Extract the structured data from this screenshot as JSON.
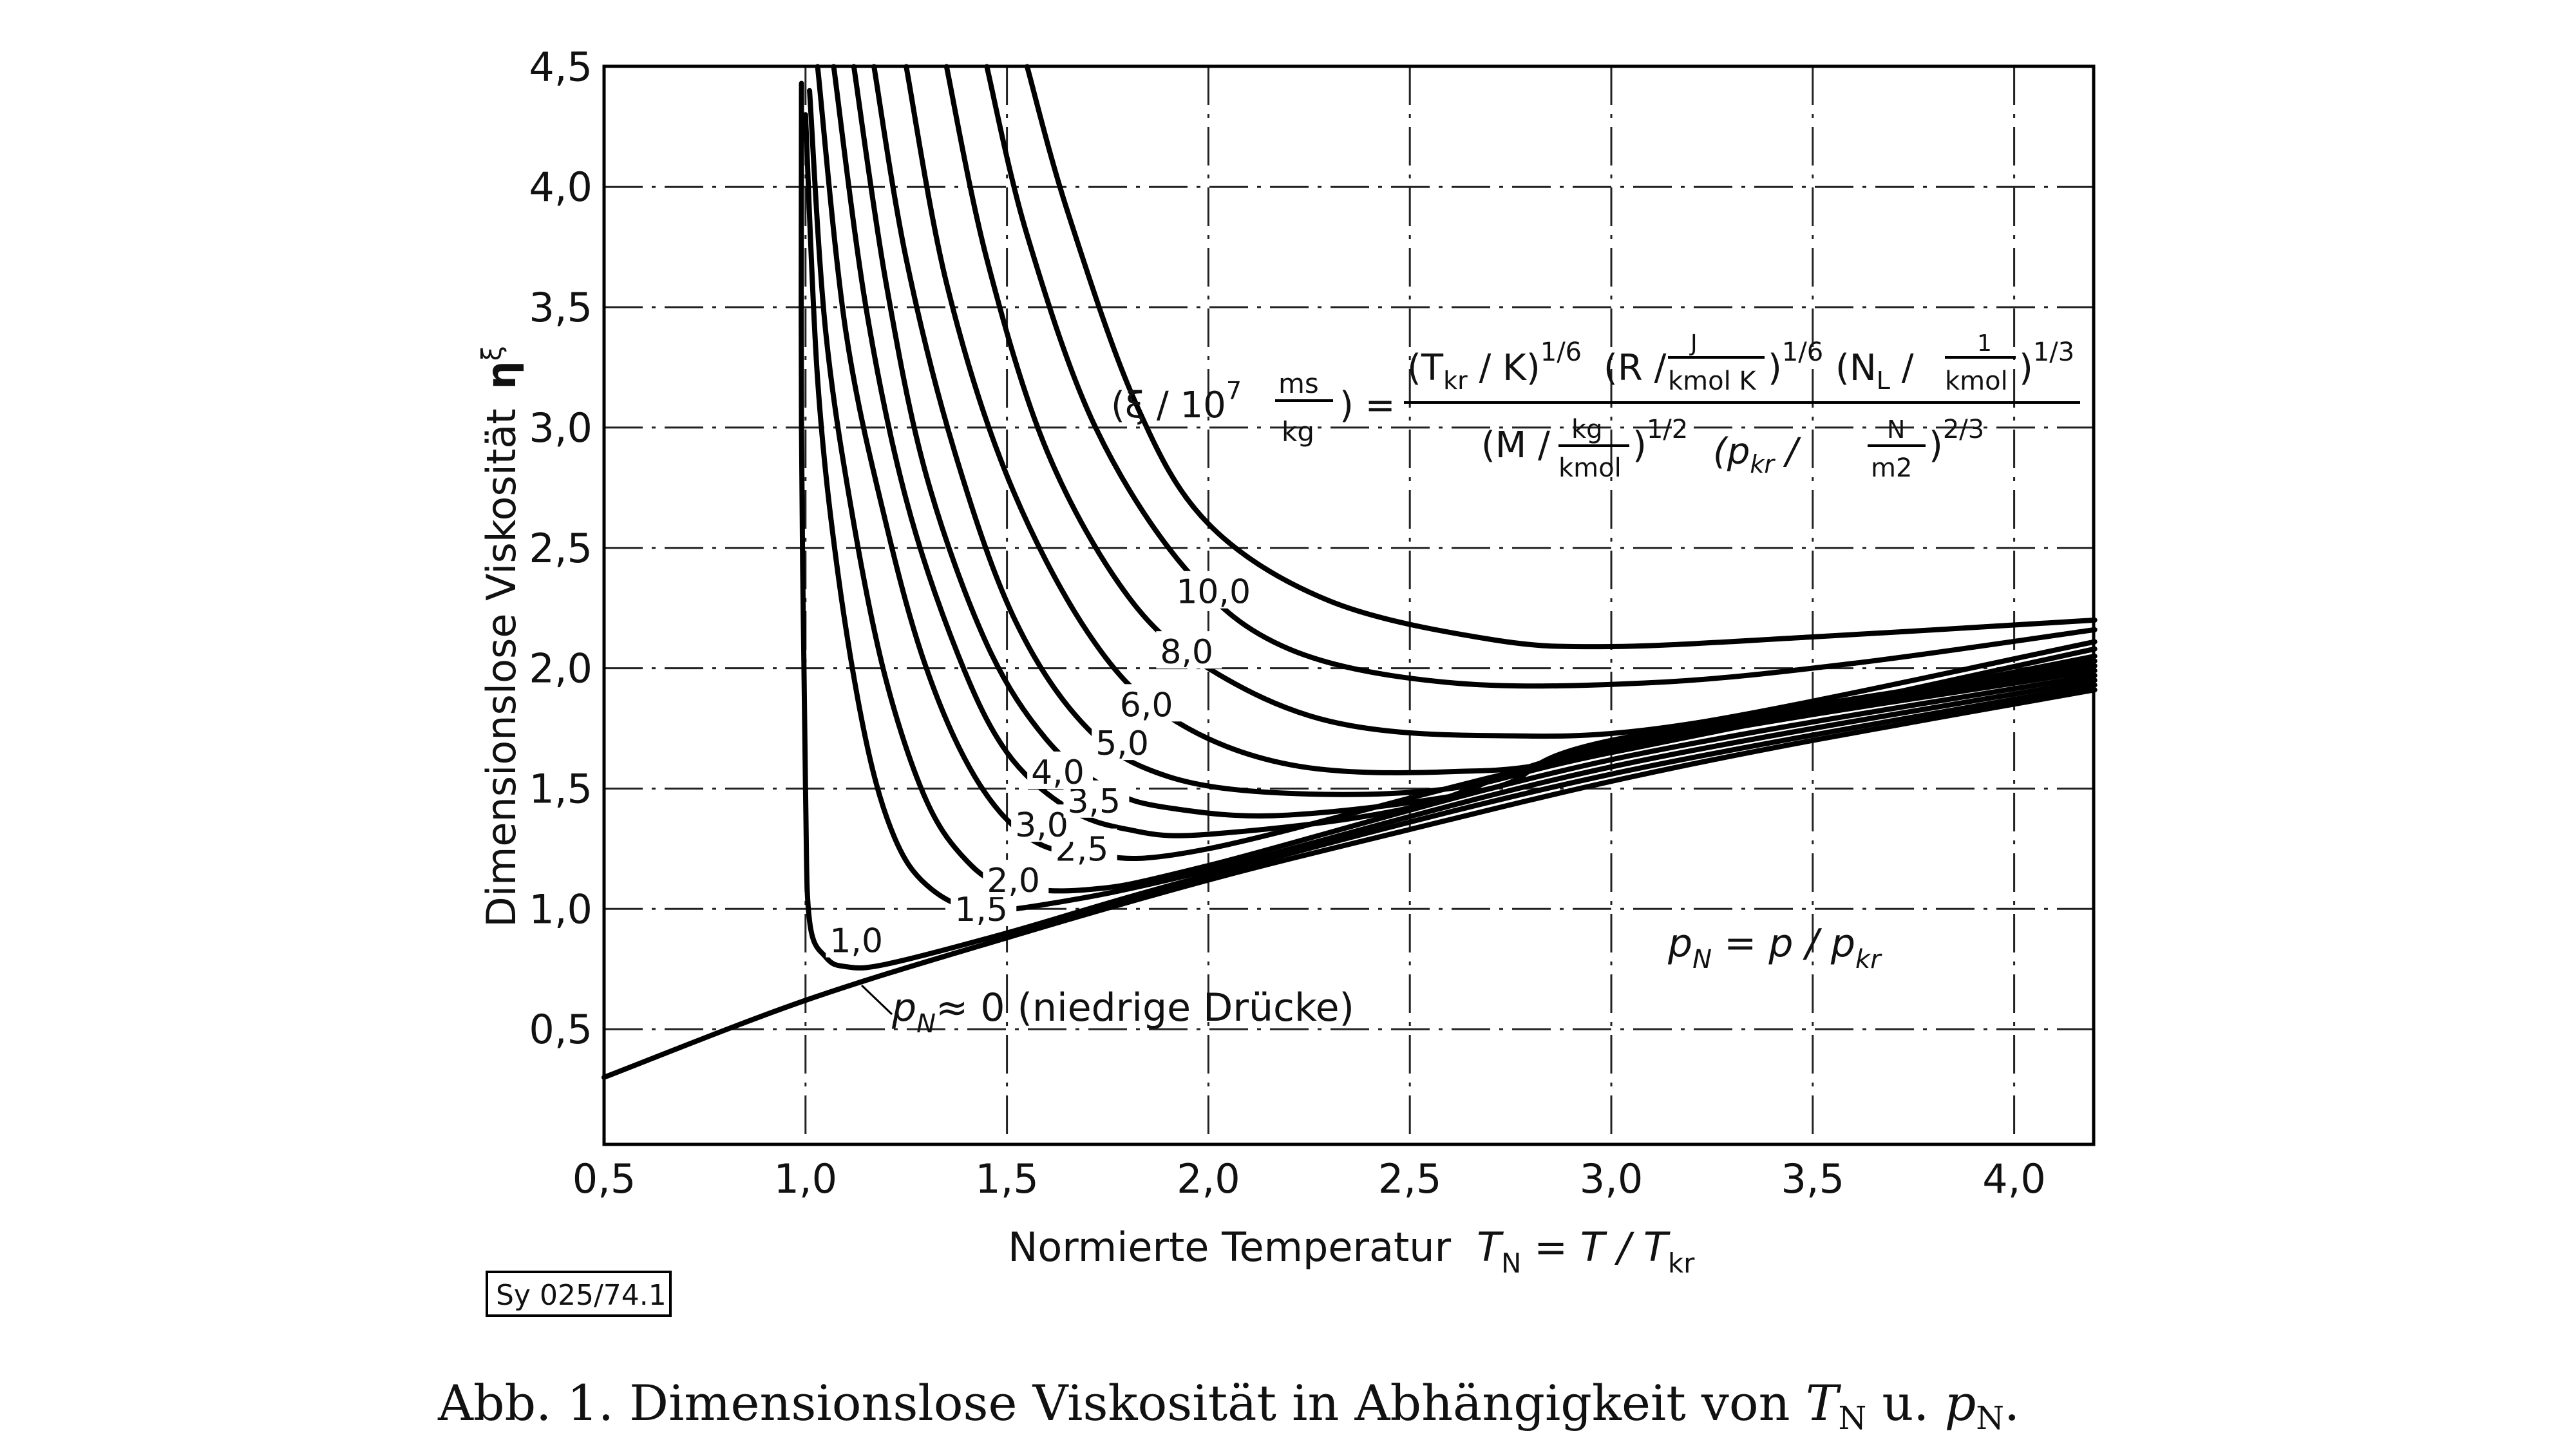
{
  "chart_data": {
    "type": "line",
    "xlabel": {
      "text": "Normierte Temperatur",
      "symbol": "T",
      "sub": "N",
      "eq": " = T / T",
      "sub2": "kr"
    },
    "ylabel": {
      "text": "Dimensionslose Viskosität",
      "symbol": "η",
      "sup": "ξ"
    },
    "xlim": [
      0.5,
      4.2
    ],
    "ylim": [
      0,
      4.5
    ],
    "grid": true,
    "xticks": [
      0.5,
      1.0,
      1.5,
      2.0,
      2.5,
      3.0,
      3.5,
      4.0
    ],
    "xtick_labels": [
      "0,5",
      "1,0",
      "1,5",
      "2,0",
      "2,5",
      "3,0",
      "3,5",
      "4,0"
    ],
    "yticks": [
      0.5,
      1.0,
      1.5,
      2.0,
      2.5,
      3.0,
      3.5,
      4.0,
      4.5
    ],
    "ytick_labels": [
      "0,5",
      "1,0",
      "1,5",
      "2,0",
      "2,5",
      "3,0",
      "3,5",
      "4,0",
      "4,5"
    ],
    "series": [
      {
        "name": "p_N ≈ 0",
        "label": "",
        "points": [
          [
            0.5,
            0.3
          ],
          [
            1.0,
            0.62
          ],
          [
            1.5,
            0.88
          ],
          [
            2.0,
            1.12
          ],
          [
            2.5,
            1.33
          ],
          [
            3.0,
            1.53
          ],
          [
            3.5,
            1.7
          ],
          [
            4.2,
            1.91
          ]
        ]
      },
      {
        "name": "1,0",
        "label": "1,0",
        "points": [
          [
            0.99,
            4.43
          ],
          [
            0.99,
            3.0
          ],
          [
            1.0,
            1.5
          ],
          [
            1.01,
            0.95
          ],
          [
            1.05,
            0.8
          ],
          [
            1.1,
            0.76
          ],
          [
            1.2,
            0.77
          ],
          [
            1.5,
            0.9
          ],
          [
            2.0,
            1.14
          ],
          [
            3.0,
            1.56
          ],
          [
            4.2,
            1.93
          ]
        ]
      },
      {
        "name": "1,5",
        "label": "1,5",
        "points": [
          [
            1.0,
            4.3
          ],
          [
            1.03,
            3.2
          ],
          [
            1.08,
            2.4
          ],
          [
            1.15,
            1.7
          ],
          [
            1.22,
            1.3
          ],
          [
            1.3,
            1.1
          ],
          [
            1.42,
            1.0
          ],
          [
            1.6,
            1.02
          ],
          [
            2.0,
            1.16
          ],
          [
            3.0,
            1.59
          ],
          [
            4.2,
            1.95
          ]
        ]
      },
      {
        "name": "2,0",
        "label": "2,0",
        "points": [
          [
            1.01,
            4.4
          ],
          [
            1.05,
            3.4
          ],
          [
            1.12,
            2.6
          ],
          [
            1.2,
            1.95
          ],
          [
            1.3,
            1.45
          ],
          [
            1.4,
            1.2
          ],
          [
            1.5,
            1.1
          ],
          [
            1.7,
            1.08
          ],
          [
            2.0,
            1.18
          ],
          [
            3.0,
            1.62
          ],
          [
            4.2,
            1.97
          ]
        ]
      },
      {
        "name": "2,5",
        "label": "2,5",
        "points": [
          [
            1.03,
            4.5
          ],
          [
            1.1,
            3.4
          ],
          [
            1.2,
            2.6
          ],
          [
            1.3,
            2.0
          ],
          [
            1.42,
            1.55
          ],
          [
            1.55,
            1.3
          ],
          [
            1.7,
            1.23
          ],
          [
            2.0,
            1.25
          ],
          [
            3.0,
            1.66
          ],
          [
            4.2,
            1.99
          ]
        ]
      },
      {
        "name": "3,0",
        "label": "3,0",
        "points": [
          [
            1.07,
            4.5
          ],
          [
            1.15,
            3.5
          ],
          [
            1.25,
            2.7
          ],
          [
            1.38,
            2.05
          ],
          [
            1.5,
            1.65
          ],
          [
            1.65,
            1.42
          ],
          [
            1.8,
            1.33
          ],
          [
            2.0,
            1.31
          ],
          [
            2.5,
            1.42
          ],
          [
            3.0,
            1.68
          ],
          [
            4.2,
            2.01
          ]
        ]
      },
      {
        "name": "3,5",
        "label": "3,5",
        "points": [
          [
            1.12,
            4.5
          ],
          [
            1.2,
            3.6
          ],
          [
            1.3,
            2.8
          ],
          [
            1.45,
            2.1
          ],
          [
            1.6,
            1.7
          ],
          [
            1.75,
            1.5
          ],
          [
            1.9,
            1.42
          ],
          [
            2.2,
            1.39
          ],
          [
            2.7,
            1.5
          ],
          [
            3.0,
            1.7
          ],
          [
            4.2,
            2.03
          ]
        ]
      },
      {
        "name": "4,0",
        "label": "4,0",
        "points": [
          [
            1.17,
            4.5
          ],
          [
            1.25,
            3.7
          ],
          [
            1.37,
            2.9
          ],
          [
            1.52,
            2.2
          ],
          [
            1.7,
            1.75
          ],
          [
            1.9,
            1.55
          ],
          [
            2.2,
            1.48
          ],
          [
            2.6,
            1.5
          ],
          [
            3.0,
            1.65
          ],
          [
            4.2,
            2.05
          ]
        ]
      },
      {
        "name": "5,0",
        "label": "5,0",
        "points": [
          [
            1.25,
            4.5
          ],
          [
            1.35,
            3.6
          ],
          [
            1.5,
            2.8
          ],
          [
            1.7,
            2.15
          ],
          [
            1.9,
            1.8
          ],
          [
            2.2,
            1.6
          ],
          [
            2.6,
            1.57
          ],
          [
            3.0,
            1.65
          ],
          [
            4.2,
            2.08
          ]
        ]
      },
      {
        "name": "6,0",
        "label": "6,0",
        "points": [
          [
            1.35,
            4.5
          ],
          [
            1.45,
            3.7
          ],
          [
            1.6,
            2.9
          ],
          [
            1.8,
            2.3
          ],
          [
            2.0,
            2.0
          ],
          [
            2.3,
            1.78
          ],
          [
            2.7,
            1.72
          ],
          [
            3.2,
            1.77
          ],
          [
            4.2,
            2.11
          ]
        ]
      },
      {
        "name": "8,0",
        "label": "8,0",
        "points": [
          [
            1.45,
            4.5
          ],
          [
            1.55,
            3.8
          ],
          [
            1.72,
            3.0
          ],
          [
            1.95,
            2.4
          ],
          [
            2.2,
            2.08
          ],
          [
            2.6,
            1.94
          ],
          [
            3.1,
            1.94
          ],
          [
            3.6,
            2.02
          ],
          [
            4.2,
            2.16
          ]
        ]
      },
      {
        "name": "10,0",
        "label": "10,0",
        "points": [
          [
            1.55,
            4.5
          ],
          [
            1.65,
            3.9
          ],
          [
            1.82,
            3.1
          ],
          [
            2.0,
            2.6
          ],
          [
            2.3,
            2.28
          ],
          [
            2.7,
            2.12
          ],
          [
            3.0,
            2.09
          ],
          [
            3.5,
            2.13
          ],
          [
            4.2,
            2.2
          ]
        ]
      }
    ],
    "annotations": {
      "low_pressure": {
        "p": "p",
        "sub": "N",
        "text": "≈ 0 (niedrige Drücke)"
      },
      "pn_def": {
        "p": "p",
        "sub": "N",
        "eq": " = p / p",
        "sub2": "kr"
      },
      "formula": {
        "lhs_open": "(ξ / 10",
        "lhs_exp": "7",
        "lhs_num": "ms",
        "lhs_den": "kg",
        "lhs_close": ") =",
        "n1": "(T",
        "n1sub": "kr",
        "n1b": " / K)",
        "n1exp": "1/6",
        "n2": "(R /",
        "n2num": "J",
        "n2den": "kmol K",
        "n2b": ")",
        "n2exp": "1/6",
        "n3": "(N",
        "n3sub": "L",
        "n3b": " /",
        "n3num": "1",
        "n3den": "kmol",
        "n3c": ")",
        "n3exp": "1/3",
        "d1": "(M /",
        "d1num": "kg",
        "d1den": "kmol",
        "d1b": ")",
        "d1exp": "1/2",
        "d2": "(p",
        "d2sub": "kr",
        "d2b": " /",
        "d2num": "N",
        "d2den": "m2",
        "d2c": ")",
        "d2exp": "2/3"
      }
    },
    "stamp": "Sy 025/74.1",
    "caption": {
      "prefix": "Abb. 1.  Dimensionslose Viskosität in Abhängigkeit von ",
      "t": "T",
      "tsub": "N",
      "mid": " u. ",
      "p": "p",
      "psub": "N",
      "end": "."
    }
  }
}
